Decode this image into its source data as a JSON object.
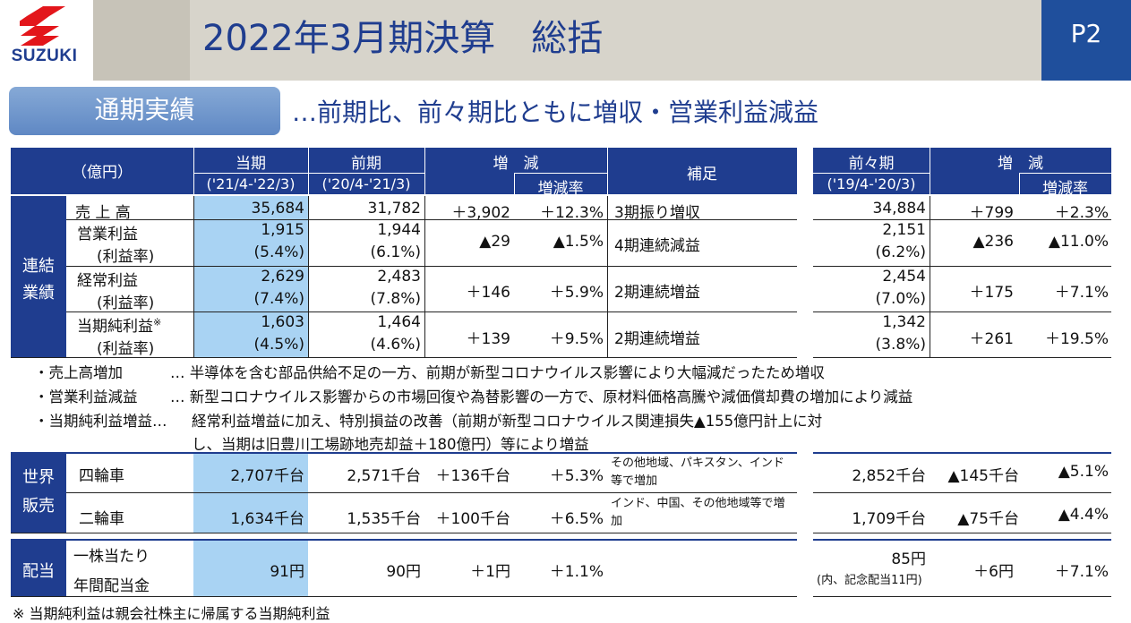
{
  "header": {
    "brand": "SUZUKI",
    "title": "2022年3月期決算　総括",
    "page": "P2"
  },
  "section": {
    "label": "通期実績",
    "subtitle": "…前期比、前々期比ともに増収・営業利益減益"
  },
  "columns": {
    "unit": "（億円）",
    "current": "当期",
    "current_period": "('21/4-'22/3)",
    "prior": "前期",
    "prior_period": "('20/4-'21/3)",
    "change": "増　減",
    "change_rate": "増減率",
    "note": "補足",
    "prior2": "前々期",
    "prior2_period": "('19/4-'20/3)",
    "change2": "増　減",
    "change_rate2": "増減率"
  },
  "consolidated": {
    "label_line1": "連結",
    "label_line2": "業績",
    "rows": [
      {
        "name": "売 上 高",
        "current": "35,684",
        "prior": "31,782",
        "change": "＋3,902",
        "rate": "＋12.3%",
        "note": "3期振り増収",
        "prior2": "34,884",
        "change2": "＋799",
        "rate2": "＋2.3%"
      },
      {
        "name": "営業利益",
        "sub": "(利益率)",
        "current": "1,915",
        "current_sub": "(5.4%)",
        "prior": "1,944",
        "prior_sub": "(6.1%)",
        "change": "▲29",
        "rate": "▲1.5%",
        "note": "4期連続減益",
        "prior2": "2,151",
        "prior2_sub": "(6.2%)",
        "change2": "▲236",
        "rate2": "▲11.0%"
      },
      {
        "name": "経常利益",
        "sub": "(利益率)",
        "current": "2,629",
        "current_sub": "(7.4%)",
        "prior": "2,483",
        "prior_sub": "(7.8%)",
        "change": "＋146",
        "rate": "＋5.9%",
        "note": "2期連続増益",
        "prior2": "2,454",
        "prior2_sub": "(7.0%)",
        "change2": "＋175",
        "rate2": "＋7.1%"
      },
      {
        "name": "当期純利益",
        "mark": "※",
        "sub": "(利益率)",
        "current": "1,603",
        "current_sub": "(4.5%)",
        "prior": "1,464",
        "prior_sub": "(4.6%)",
        "change": "＋139",
        "rate": "＋9.5%",
        "note": "2期連続増益",
        "prior2": "1,342",
        "prior2_sub": "(3.8%)",
        "change2": "＋261",
        "rate2": "＋19.5%"
      }
    ]
  },
  "explanations": [
    {
      "label": "・売上高増加",
      "text": "… 半導体を含む部品供給不足の一方、前期が新型コロナウイルス影響により大幅減だったため増収"
    },
    {
      "label": "・営業利益減益",
      "text": "… 新型コロナウイルス影響からの市場回復や為替影響の一方で、原材料価格高騰や減価償却費の増加により減益"
    },
    {
      "label": "・当期純利益増益…",
      "text": "経常利益増益に加え、特別損益の改善（前期が新型コロナウイルス関連損失▲155億円計上に対",
      "text2": "し、当期は旧豊川工場跡地売却益＋180億円）等により増益"
    }
  ],
  "sales": {
    "label_line1": "世界",
    "label_line2": "販売",
    "rows": [
      {
        "name": "四輪車",
        "current": "2,707千台",
        "prior": "2,571千台",
        "change": "＋136千台",
        "rate": "＋5.3%",
        "note": "その他地域、パキスタン、インド等で増加",
        "prior2": "2,852千台",
        "change2": "▲145千台",
        "rate2": "▲5.1%"
      },
      {
        "name": "二輪車",
        "current": "1,634千台",
        "prior": "1,535千台",
        "change": "＋100千台",
        "rate": "＋6.5%",
        "note": "インド、中国、その他地域等で増加",
        "prior2": "1,709千台",
        "change2": "▲75千台",
        "rate2": "▲4.4%"
      }
    ]
  },
  "dividend": {
    "label": "配当",
    "name_line1": "一株当たり",
    "name_line2": "年間配当金",
    "current": "91円",
    "prior": "90円",
    "change": "＋1円",
    "rate": "＋1.1%",
    "prior2": "85円",
    "prior2_sub": "(内、記念配当11円)",
    "change2": "＋6円",
    "rate2": "＋7.1%"
  },
  "footnote": "※ 当期純利益は親会社株主に帰属する当期純利益",
  "colors": {
    "navy": "#1f3d8f",
    "light_blue": "#a9d3f3",
    "page_blue": "#1f4f9c"
  }
}
